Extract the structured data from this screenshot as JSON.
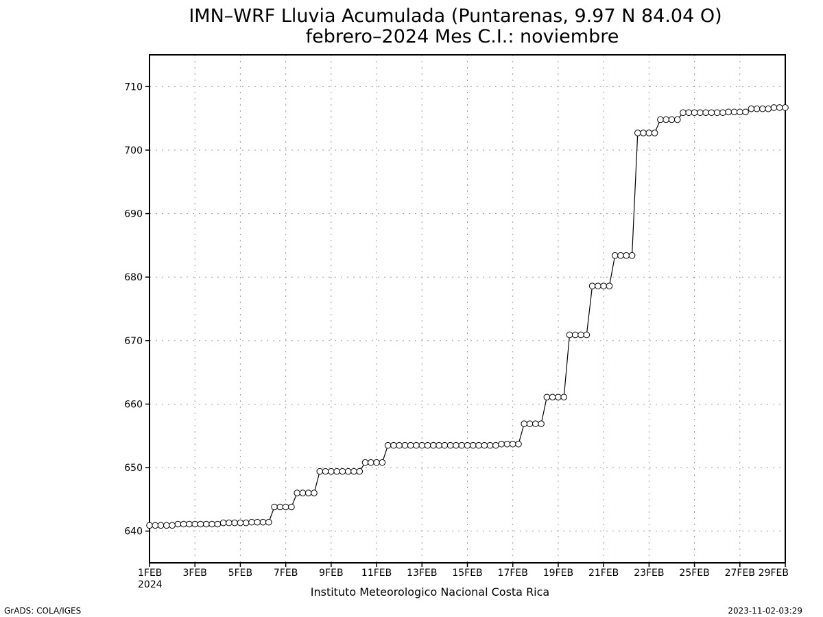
{
  "chart_data": {
    "type": "line",
    "title": "IMN–WRF  Lluvia Acumulada  (Puntarenas, 9.97  N 84.04  O)",
    "subtitle": "febrero–2024 Mes C.I.: noviembre",
    "xlabel": "",
    "ylabel": "",
    "x_ticks": [
      "1FEB",
      "3FEB",
      "5FEB",
      "7FEB",
      "9FEB",
      "11FEB",
      "13FEB",
      "15FEB",
      "17FEB",
      "19FEB",
      "21FEB",
      "23FEB",
      "25FEB",
      "27FEB",
      "29FEB"
    ],
    "x_year_label": "2024",
    "y_ticks": [
      640,
      650,
      660,
      670,
      680,
      690,
      700,
      710
    ],
    "xlim": [
      1,
      29
    ],
    "ylim": [
      635,
      715
    ],
    "grid": true,
    "marker": "open-circle",
    "series": [
      {
        "x": [
          1.0,
          1.25,
          1.5,
          1.75,
          2.0,
          2.25,
          2.5,
          2.75,
          3.0,
          3.25,
          3.5,
          3.75,
          4.0,
          4.25,
          4.5,
          4.75,
          5.0,
          5.25,
          5.5,
          5.75,
          6.0,
          6.25,
          6.5,
          6.75,
          7.0,
          7.25,
          7.5,
          7.75,
          8.0,
          8.25,
          8.5,
          8.75,
          9.0,
          9.25,
          9.5,
          9.75,
          10.0,
          10.25,
          10.5,
          10.75,
          11.0,
          11.25,
          11.5,
          11.75,
          12.0,
          12.25,
          12.5,
          12.75,
          13.0,
          13.25,
          13.5,
          13.75,
          14.0,
          14.25,
          14.5,
          14.75,
          15.0,
          15.25,
          15.5,
          15.75,
          16.0,
          16.25,
          16.5,
          16.75,
          17.0,
          17.25,
          17.5,
          17.75,
          18.0,
          18.25,
          18.5,
          18.75,
          19.0,
          19.25,
          19.5,
          19.75,
          20.0,
          20.25,
          20.5,
          20.75,
          21.0,
          21.25,
          21.5,
          21.75,
          22.0,
          22.25,
          22.5,
          22.75,
          23.0,
          23.25,
          23.5,
          23.75,
          24.0,
          24.25,
          24.5,
          24.75,
          25.0,
          25.25,
          25.5,
          25.75,
          26.0,
          26.25,
          26.5,
          26.75,
          27.0,
          27.25,
          27.5,
          27.75,
          28.0,
          28.25,
          28.5,
          28.75,
          29.0
        ],
        "y": [
          640.9,
          640.9,
          640.9,
          640.9,
          640.9,
          641.1,
          641.1,
          641.1,
          641.1,
          641.1,
          641.1,
          641.1,
          641.1,
          641.3,
          641.3,
          641.3,
          641.3,
          641.3,
          641.4,
          641.4,
          641.4,
          641.4,
          643.8,
          643.8,
          643.8,
          643.8,
          646.0,
          646.0,
          646.0,
          646.0,
          649.4,
          649.4,
          649.4,
          649.4,
          649.4,
          649.4,
          649.4,
          649.4,
          650.8,
          650.8,
          650.8,
          650.8,
          653.5,
          653.5,
          653.5,
          653.5,
          653.5,
          653.5,
          653.5,
          653.5,
          653.5,
          653.5,
          653.5,
          653.5,
          653.5,
          653.5,
          653.5,
          653.5,
          653.5,
          653.5,
          653.5,
          653.5,
          653.7,
          653.7,
          653.7,
          653.7,
          656.9,
          656.9,
          656.9,
          656.9,
          661.1,
          661.1,
          661.1,
          661.1,
          670.9,
          670.9,
          670.9,
          670.9,
          678.6,
          678.6,
          678.6,
          678.6,
          683.4,
          683.4,
          683.4,
          683.4,
          702.7,
          702.7,
          702.7,
          702.7,
          704.8,
          704.8,
          704.8,
          704.8,
          705.9,
          705.9,
          705.9,
          705.9,
          705.9,
          705.9,
          705.9,
          705.9,
          706.0,
          706.0,
          706.0,
          706.0,
          706.5,
          706.5,
          706.5,
          706.5,
          706.7,
          706.7,
          706.7
        ]
      }
    ]
  },
  "footer": {
    "institution": "Instituto Meteorologico Nacional Costa Rica",
    "left": "GrADS: COLA/IGES",
    "right": "2023-11-02-03:29"
  }
}
